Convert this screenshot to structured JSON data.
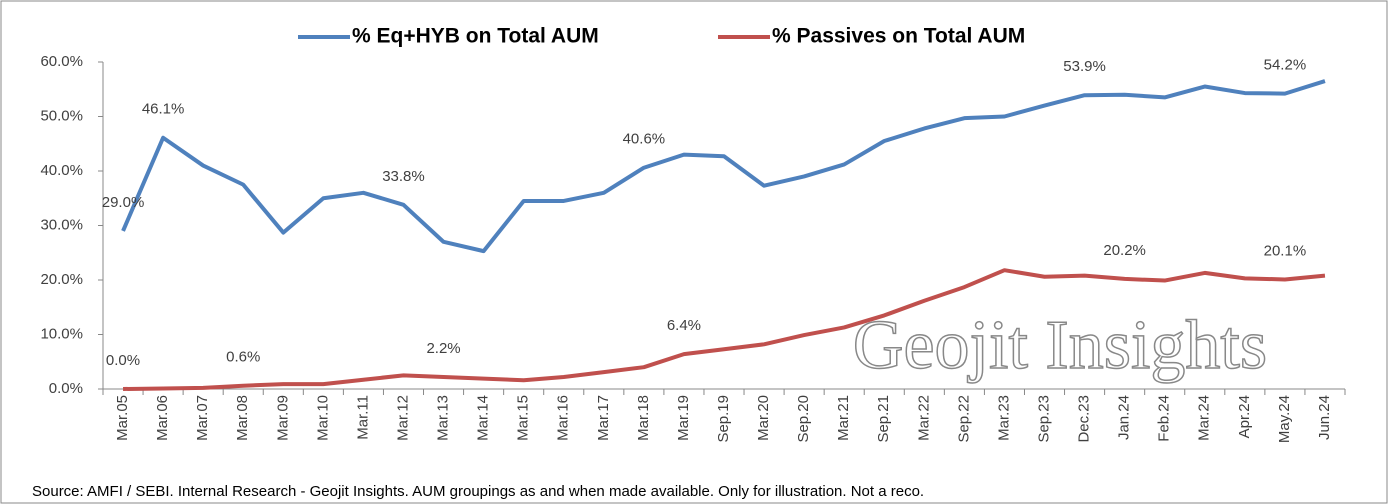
{
  "chart_data": {
    "type": "line",
    "categories": [
      "Mar.05",
      "Mar.06",
      "Mar.07",
      "Mar.08",
      "Mar.09",
      "Mar.10",
      "Mar.11",
      "Mar.12",
      "Mar.13",
      "Mar.14",
      "Mar.15",
      "Mar.16",
      "Mar.17",
      "Mar.18",
      "Mar.19",
      "Sep.19",
      "Mar.20",
      "Sep.20",
      "Mar.21",
      "Sep.21",
      "Mar.22",
      "Sep.22",
      "Mar.23",
      "Sep.23",
      "Dec.23",
      "Jan.24",
      "Feb.24",
      "Mar.24",
      "Apr.24",
      "May.24",
      "Jun.24"
    ],
    "series": [
      {
        "name": "% Eq+HYB on Total AUM",
        "color": "#4f81bd",
        "values": [
          29.0,
          46.1,
          41,
          37.5,
          28.7,
          35,
          36,
          33.8,
          27,
          25.3,
          34.5,
          34.5,
          36,
          40.6,
          43,
          42.7,
          37.3,
          39,
          41.2,
          45.5,
          47.8,
          49.7,
          50,
          52,
          53.9,
          54,
          53.5,
          55.5,
          54.3,
          54.2,
          56.5
        ],
        "value_labels": [
          "29.0%",
          "46.1%",
          null,
          null,
          null,
          null,
          null,
          "33.8%",
          null,
          null,
          null,
          null,
          null,
          "40.6%",
          null,
          null,
          null,
          null,
          null,
          null,
          null,
          null,
          null,
          null,
          "53.9%",
          null,
          null,
          null,
          null,
          "54.2%",
          null
        ]
      },
      {
        "name": "% Passives on Total AUM",
        "color": "#c0504d",
        "values": [
          0.0,
          0.1,
          0.2,
          0.6,
          0.9,
          0.9,
          1.7,
          2.5,
          2.2,
          1.9,
          1.6,
          2.2,
          3.1,
          4.0,
          6.4,
          7.3,
          8.2,
          9.9,
          11.3,
          13.5,
          16.2,
          18.7,
          21.8,
          20.6,
          20.8,
          20.2,
          19.9,
          21.3,
          20.3,
          20.1,
          20.8
        ],
        "value_labels": [
          "0.0%",
          null,
          null,
          "0.6%",
          null,
          null,
          null,
          null,
          "2.2%",
          null,
          null,
          null,
          null,
          null,
          "6.4%",
          null,
          null,
          null,
          null,
          null,
          null,
          null,
          null,
          null,
          null,
          "20.2%",
          null,
          null,
          null,
          "20.1%",
          null
        ]
      }
    ],
    "ylim": [
      0,
      60
    ],
    "yticks": [
      {
        "value": 0,
        "label": "0.0%"
      },
      {
        "value": 10,
        "label": "10.0%"
      },
      {
        "value": 20,
        "label": "20.0%"
      },
      {
        "value": 30,
        "label": "30.0%"
      },
      {
        "value": 40,
        "label": "40.0%"
      },
      {
        "value": 50,
        "label": "50.0%"
      },
      {
        "value": 60,
        "label": "60.0%"
      }
    ],
    "legend": "top",
    "watermark": "Geojit Insights",
    "source": "Source: AMFI / SEBI. Internal Research - Geojit Insights. AUM groupings as and when made available. Only for illustration. Not a reco."
  }
}
